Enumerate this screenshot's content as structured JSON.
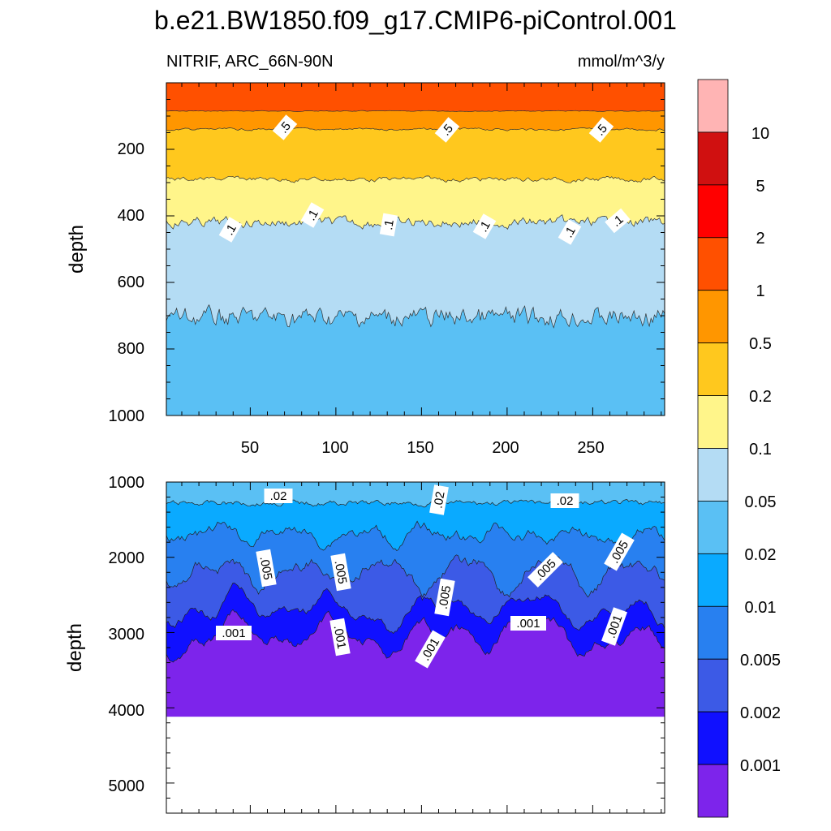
{
  "chart_data": {
    "type": "contour",
    "title": "b.e21.BW1850.f09_g17.CMIP6-piControl.001",
    "subtitle_left": "NITRIF, ARC_66N-90N",
    "subtitle_right": "mmol/m^3/y",
    "colorbar": {
      "levels": [
        "10",
        "5",
        "2",
        "1",
        "0.5",
        "0.2",
        "0.1",
        "0.05",
        "0.02",
        "0.01",
        "0.005",
        "0.002",
        "0.001"
      ],
      "colors": [
        "#ffb4b4",
        "#d01010",
        "#ff0000",
        "#ff5000",
        "#ff9600",
        "#ffc81e",
        "#fff58a",
        "#b4dcf4",
        "#5ac0f4",
        "#0aaaff",
        "#2880f0",
        "#3c5ae6",
        "#1010ff",
        "#7d24eb"
      ]
    },
    "panels": [
      {
        "name": "upper",
        "ylabel": "depth",
        "xlim": [
          1,
          292
        ],
        "ylim": [
          0,
          1000
        ],
        "yticks": [
          "200",
          "400",
          "600",
          "800",
          "1000"
        ],
        "xticks": [
          "50",
          "100",
          "150",
          "200",
          "250"
        ],
        "contour_labels": [
          ".5",
          ".5",
          ".5",
          ".1",
          ".1",
          ".1",
          ".1",
          ".1",
          ".1"
        ]
      },
      {
        "name": "lower",
        "ylabel": "depth",
        "xlim": [
          1,
          292
        ],
        "ylim": [
          1000,
          5400
        ],
        "yticks": [
          "1000",
          "2000",
          "3000",
          "4000",
          "5000"
        ],
        "contour_labels": [
          ".02",
          ".02",
          ".02",
          ".005",
          ".005",
          ".005",
          ".005",
          ".005",
          ".001",
          ".001",
          ".001",
          ".001",
          ".001"
        ]
      }
    ]
  }
}
